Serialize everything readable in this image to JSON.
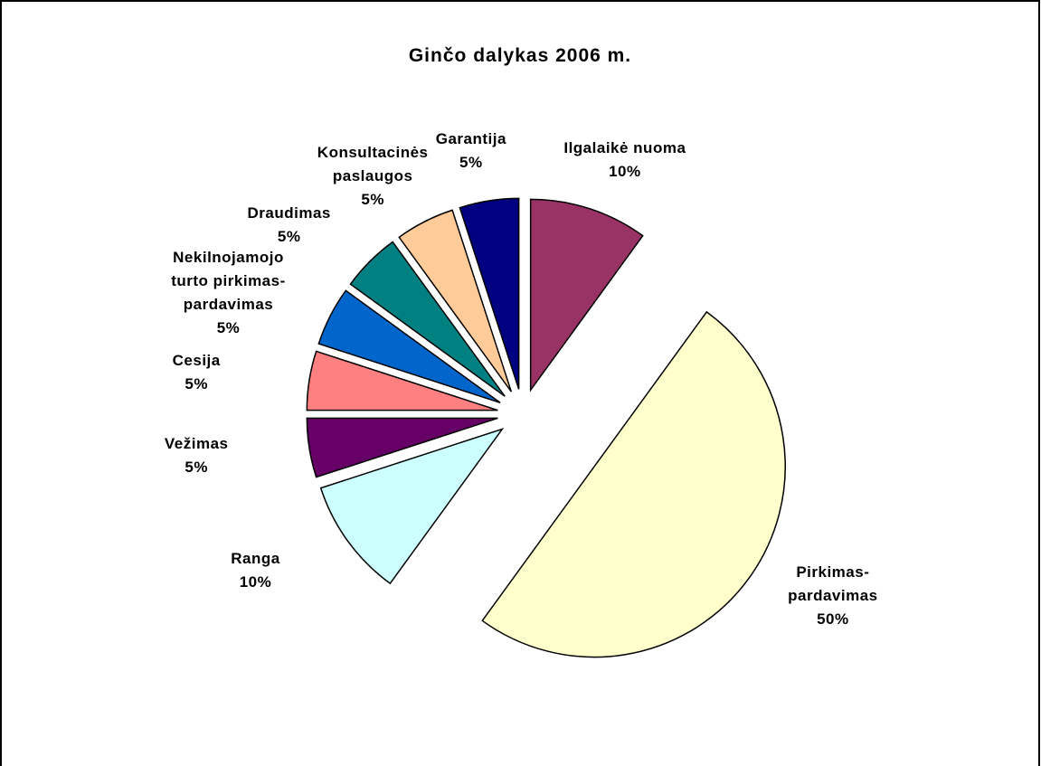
{
  "chart_data": {
    "type": "pie",
    "title": "Ginčo dalykas 2006 m.",
    "categories": [
      "Ilgalaikė nuoma",
      "Pirkimas-\npardavimas",
      "Ranga",
      "Vežimas",
      "Cesija",
      "Nekilnojamojo\nturto pirkimas-\npardavimas",
      "Draudimas",
      "Konsultacinės\npaslaugos",
      "Garantija"
    ],
    "values": [
      10,
      50,
      10,
      5,
      5,
      5,
      5,
      5,
      5
    ],
    "value_labels": [
      "10%",
      "50%",
      "10%",
      "5%",
      "5%",
      "5%",
      "5%",
      "5%",
      "5%"
    ],
    "colors": [
      "#993366",
      "#FFFFCC",
      "#CCFFFF",
      "#660066",
      "#FF8080",
      "#0066CC",
      "#008080",
      "#FFCC99",
      "#000080"
    ]
  }
}
